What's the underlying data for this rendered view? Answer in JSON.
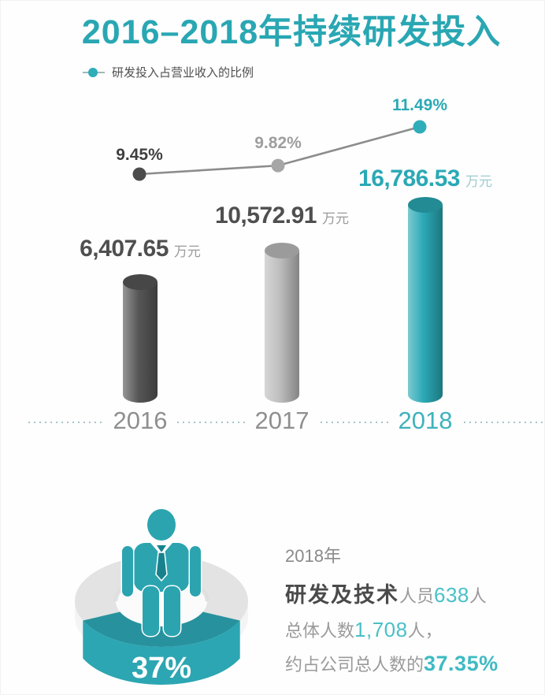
{
  "header": {
    "title": "2016–2018年持续研发投入",
    "title_color": "#29a7b3"
  },
  "legend": {
    "label": "研发投入占营业收入的比例",
    "marker_color": "#2fadb9",
    "line_color": "#9fb8ba"
  },
  "chart_data": {
    "type": "combo",
    "categories": [
      "2016",
      "2017",
      "2018"
    ],
    "x_tick_colors": [
      "#8f8f8f",
      "#8f8f8f",
      "#3fb2bc"
    ],
    "axis": {
      "baseline_style": "dotted",
      "baseline_color": "#a6c4c6",
      "grid": false
    },
    "series": [
      {
        "type": "line",
        "name": "研发投入占营业收入的比例",
        "unit": "%",
        "values": [
          9.45,
          9.82,
          11.49
        ],
        "labels": [
          "9.45%",
          "9.82%",
          "11.49%"
        ],
        "label_colors": [
          "#3f3f3f",
          "#9e9e9e",
          "#2aa9b5"
        ],
        "point_colors": [
          "#4c4c4c",
          "#a6a6a6",
          "#2fadb9"
        ],
        "line_color": "#8c8c8c"
      },
      {
        "type": "bar",
        "unit": "万元",
        "values": [
          6407.65,
          10572.91,
          16786.53
        ],
        "labels": [
          "6,407.65",
          "10,572.91",
          "16,786.53"
        ],
        "label_colors": [
          "#4f4f4f",
          "#4f4f4f",
          "#2aa9b5"
        ],
        "unit_colors": [
          "#9b9b9b",
          "#9b9b9b",
          "#9fcbd1"
        ],
        "bar_colors": [
          "#565656",
          "#bdbdbd",
          "#2aa9b5"
        ]
      }
    ]
  },
  "footer": {
    "donut": {
      "percent_label": "37%",
      "value_pct": 37,
      "segment_color": "#2ca6b2",
      "ring_color": "#e3e3e3"
    },
    "person_icon_color": "#2ba4b0",
    "text": {
      "line1": "2018年",
      "line2_bold": "研发及技术",
      "line2_mid": "人员",
      "line2_value": "638",
      "line2_suffix": "人",
      "line3_pre": "总体人数",
      "line3_value": "1,708",
      "line3_suffix": "人，",
      "line4_pre": "约占公司总人数的",
      "line4_value": "37.35%"
    }
  }
}
